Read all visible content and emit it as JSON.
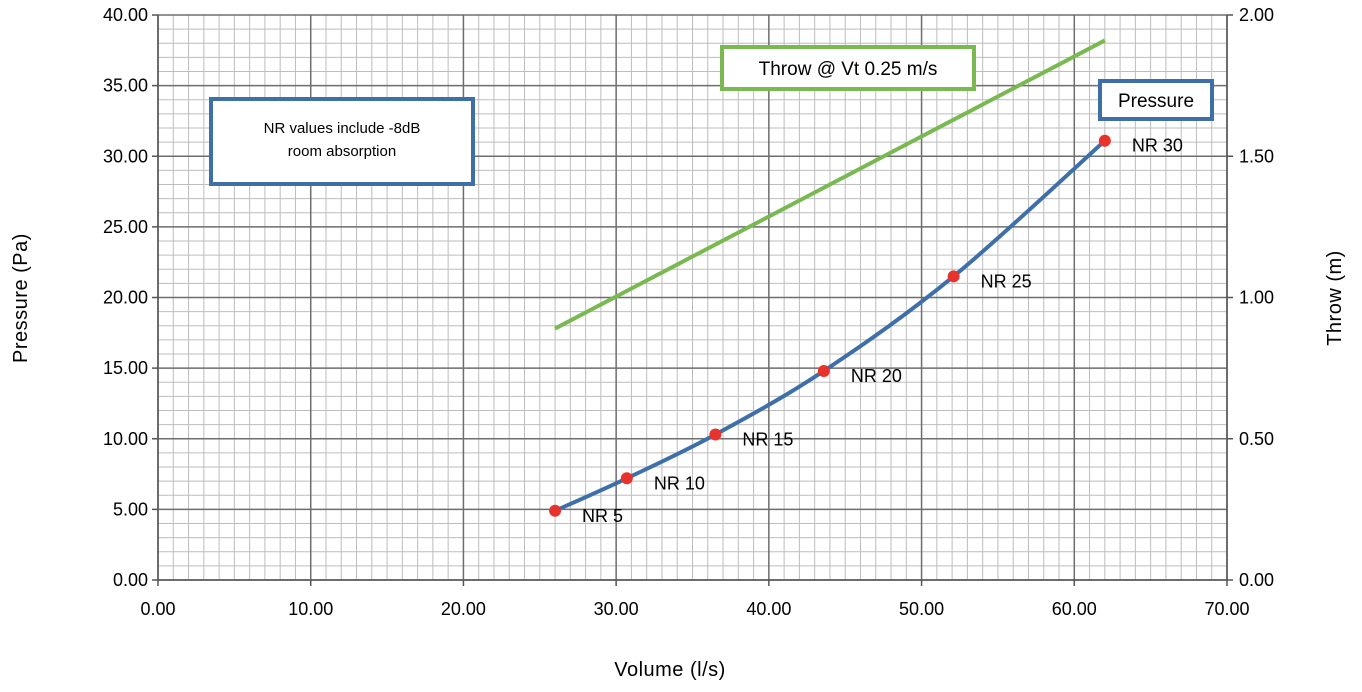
{
  "chart_data": {
    "type": "line",
    "xlabel": "Volume (l/s)",
    "ylabel": "Pressure (Pa)",
    "y2label": "Throw (m)",
    "xlim": [
      0,
      70
    ],
    "ylim": [
      0,
      40
    ],
    "y2lim": [
      0,
      2
    ],
    "x_ticks": [
      "0.00",
      "10.00",
      "20.00",
      "30.00",
      "40.00",
      "50.00",
      "60.00",
      "70.00"
    ],
    "y_ticks": [
      "0.00",
      "5.00",
      "10.00",
      "15.00",
      "20.00",
      "25.00",
      "30.00",
      "35.00",
      "40.00"
    ],
    "y2_ticks": [
      "0.00",
      "0.50",
      "1.00",
      "1.50",
      "2.00"
    ],
    "grid": true,
    "series": [
      {
        "name": "Pressure",
        "axis": "left",
        "color": "#3f6fa8",
        "x": [
          26.0,
          30.7,
          36.5,
          43.6,
          52.1,
          62.0
        ],
        "y": [
          4.9,
          7.2,
          10.3,
          14.8,
          21.5,
          31.1
        ],
        "point_labels": [
          "NR 5",
          "NR 10",
          "NR 15",
          "NR 20",
          "NR 25",
          "NR 30"
        ],
        "marker_color": "#e8332c"
      },
      {
        "name": "Throw @ Vt 0.25 m/s",
        "axis": "right",
        "color": "#7ab851",
        "x": [
          26.0,
          62.0
        ],
        "y": [
          0.89,
          1.91
        ]
      }
    ],
    "annotations": [
      {
        "lines": [
          "NR values include -8dB",
          "room absorption"
        ],
        "border": "#3f6fa8"
      }
    ]
  }
}
